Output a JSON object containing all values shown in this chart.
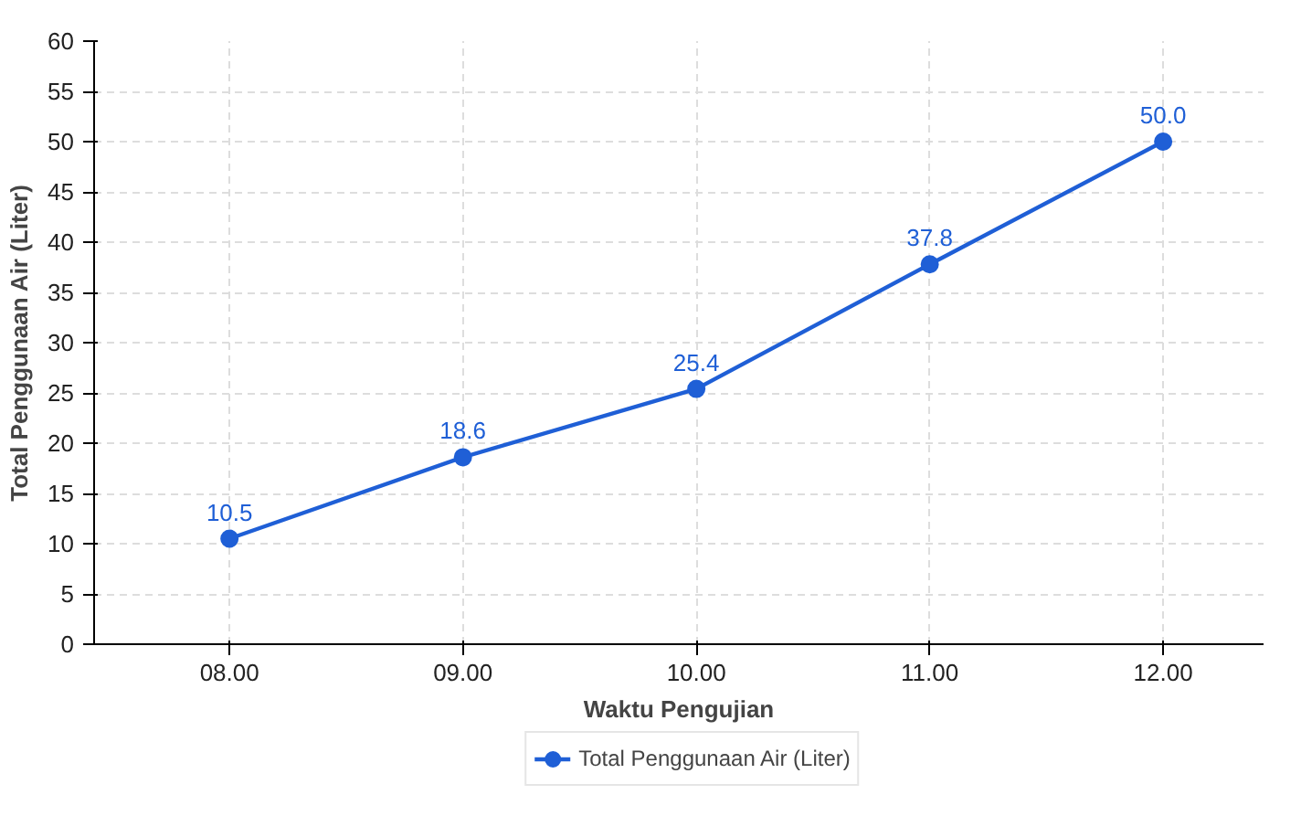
{
  "chart_data": {
    "type": "line",
    "xlabel": "Waktu Pengujian",
    "ylabel": "Total Penggunaan Air (Liter)",
    "categories": [
      "08.00",
      "09.00",
      "10.00",
      "11.00",
      "12.00"
    ],
    "series": [
      {
        "name": "Total Penggunaan Air (Liter)",
        "color": "#1f5fd6",
        "values": [
          10.5,
          18.6,
          25.4,
          37.8,
          50.0
        ]
      }
    ],
    "ylim": [
      0,
      60
    ],
    "yticks": [
      0,
      5,
      10,
      15,
      20,
      25,
      30,
      35,
      40,
      45,
      50,
      55,
      60
    ],
    "value_labels": [
      "10.5",
      "18.6",
      "25.4",
      "37.8",
      "50.0"
    ],
    "grid": true,
    "legend": "bottom",
    "marker": "circle",
    "line_style": "solid"
  }
}
